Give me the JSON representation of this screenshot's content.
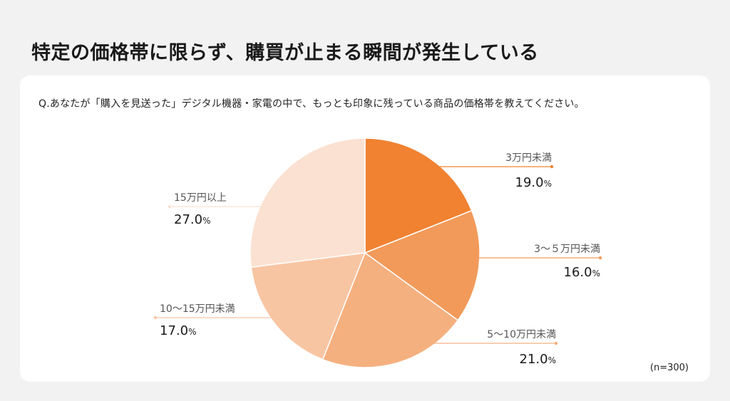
{
  "page": {
    "title": "特定の価格帯に限らず、購買が止まる瞬間が発生している"
  },
  "card": {
    "question": "Q.あなたが「購入を見送った」デジタル機器・家電の中で、もっとも印象に残っている商品の価格帯を教えてください。",
    "sample_size": "(n=300)"
  },
  "chart_data": {
    "type": "pie",
    "title": "",
    "unit": "%",
    "start_angle_deg": 0,
    "direction": "clockwise",
    "slices": [
      {
        "label": "3万円未満",
        "value": 19.0,
        "value_text": "19.0",
        "color": "#f08231"
      },
      {
        "label": "3～５万円未満",
        "value": 16.0,
        "value_text": "16.0",
        "color": "#f29a5a"
      },
      {
        "label": "5～10万円未満",
        "value": 21.0,
        "value_text": "21.0",
        "color": "#f5b07f"
      },
      {
        "label": "10～15万円未満",
        "value": 17.0,
        "value_text": "17.0",
        "color": "#f8c5a3"
      },
      {
        "label": "15万円以上",
        "value": 27.0,
        "value_text": "27.0",
        "color": "#fbe1d1"
      }
    ]
  }
}
